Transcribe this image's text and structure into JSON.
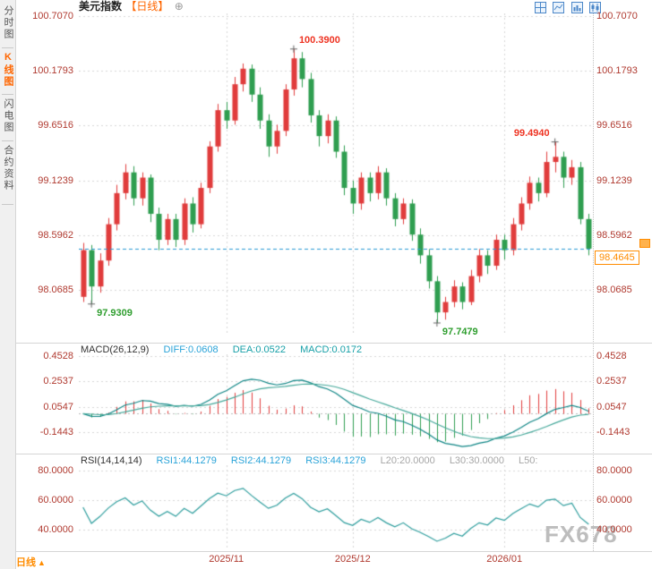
{
  "header": {
    "symbol": "美元指数",
    "period": "【日线】",
    "expand_glyph": "⊕"
  },
  "toolbar": {
    "icons": [
      "grid-layout-icon",
      "line-chart-icon",
      "bar-chart-icon",
      "candlestick-chart-icon"
    ]
  },
  "sidebar": {
    "tabs": [
      {
        "label": "分时图",
        "active": false
      },
      {
        "label": "K线图",
        "active": true
      },
      {
        "label": "闪电图",
        "active": false
      },
      {
        "label": "合约资料",
        "active": false
      }
    ]
  },
  "price_axis": {
    "ticks": [
      "100.7070",
      "100.1793",
      "99.6516",
      "99.1239",
      "98.5962",
      "98.0685"
    ],
    "current_label": "98.4645"
  },
  "macd_panel": {
    "title": "MACD(26,12,9)",
    "diff": "DIFF:0.0608",
    "dea": "DEA:0.0522",
    "macd": "MACD:0.0172",
    "ticks": [
      "0.4528",
      "0.2537",
      "0.0547",
      "-0.1443"
    ]
  },
  "rsi_panel": {
    "title": "RSI(14,14,14)",
    "rsi1": "RSI1:44.1279",
    "rsi2": "RSI2:44.1279",
    "rsi3": "RSI3:44.1279",
    "l20": "L20:20.0000",
    "l30": "L30:30.0000",
    "l50": "L50:",
    "ticks": [
      "80.0000",
      "60.0000",
      "40.0000"
    ]
  },
  "footer": {
    "period": "日线",
    "arrow": "▲"
  },
  "watermark": "FX678",
  "colors": {
    "up": "#e03c3c",
    "down": "#2f9e50",
    "grid": "#d6d6d6",
    "axis_text": "#b03a30",
    "dashed_line": "#2a9ad4",
    "current_price_accent": "#ff8c00",
    "diff_line": "#0e8585",
    "dea_line": "#45a89a",
    "rsi_line": "#2d9d9d",
    "header_blue": "#2aa3d8",
    "header_gray": "#a6a6a6",
    "watermark": "#bdbdbd",
    "sidebar_active": "#ff6600"
  },
  "chart_data": {
    "type": "candlestick",
    "symbol": "美元指数",
    "period": "日线",
    "price_domain": [
      97.653,
      100.733
    ],
    "macd_domain": [
      -0.305,
      0.465
    ],
    "rsi_domain": [
      26.5,
      83.5
    ],
    "current_price": 98.4645,
    "ohlc": [
      [
        98.0,
        98.52,
        97.95,
        98.45
      ],
      [
        98.45,
        98.5,
        97.9309,
        98.1
      ],
      [
        98.1,
        98.42,
        98.04,
        98.35
      ],
      [
        98.35,
        98.76,
        98.3,
        98.7
      ],
      [
        98.7,
        99.08,
        98.64,
        99.0
      ],
      [
        99.0,
        99.28,
        98.94,
        99.2
      ],
      [
        99.2,
        99.26,
        98.88,
        98.95
      ],
      [
        98.95,
        99.2,
        98.88,
        99.15
      ],
      [
        99.15,
        99.18,
        98.72,
        98.8
      ],
      [
        98.8,
        98.86,
        98.45,
        98.55
      ],
      [
        98.55,
        98.8,
        98.5,
        98.75
      ],
      [
        98.75,
        98.8,
        98.48,
        98.55
      ],
      [
        98.55,
        98.95,
        98.5,
        98.9
      ],
      [
        98.9,
        98.96,
        98.62,
        98.7
      ],
      [
        98.7,
        99.1,
        98.66,
        99.05
      ],
      [
        99.05,
        99.5,
        99.0,
        99.45
      ],
      [
        99.45,
        99.86,
        99.4,
        99.8
      ],
      [
        99.8,
        99.88,
        99.62,
        99.7
      ],
      [
        99.7,
        100.12,
        99.66,
        100.05
      ],
      [
        100.05,
        100.25,
        99.98,
        100.2
      ],
      [
        100.2,
        100.24,
        99.88,
        99.95
      ],
      [
        99.95,
        100.02,
        99.62,
        99.7
      ],
      [
        99.7,
        99.76,
        99.35,
        99.45
      ],
      [
        99.45,
        99.66,
        99.38,
        99.6
      ],
      [
        99.6,
        100.05,
        99.55,
        100.0
      ],
      [
        100.0,
        100.39,
        99.94,
        100.3
      ],
      [
        100.3,
        100.36,
        100.02,
        100.1
      ],
      [
        100.1,
        100.16,
        99.68,
        99.75
      ],
      [
        99.75,
        99.8,
        99.45,
        99.55
      ],
      [
        99.55,
        99.76,
        99.48,
        99.7
      ],
      [
        99.7,
        99.74,
        99.34,
        99.4
      ],
      [
        99.4,
        99.46,
        98.98,
        99.05
      ],
      [
        99.05,
        99.12,
        98.8,
        98.9
      ],
      [
        98.9,
        99.2,
        98.84,
        99.15
      ],
      [
        99.15,
        99.2,
        98.92,
        99.0
      ],
      [
        99.0,
        99.26,
        98.94,
        99.2
      ],
      [
        99.2,
        99.24,
        98.88,
        98.95
      ],
      [
        98.95,
        99.0,
        98.68,
        98.75
      ],
      [
        98.75,
        98.95,
        98.7,
        98.9
      ],
      [
        98.9,
        98.94,
        98.54,
        98.6
      ],
      [
        98.6,
        98.66,
        98.32,
        98.4
      ],
      [
        98.4,
        98.46,
        98.08,
        98.15
      ],
      [
        98.15,
        98.2,
        97.7479,
        97.85
      ],
      [
        97.85,
        98.0,
        97.78,
        97.95
      ],
      [
        97.95,
        98.16,
        97.9,
        98.1
      ],
      [
        98.1,
        98.14,
        97.88,
        97.95
      ],
      [
        97.95,
        98.26,
        97.92,
        98.2
      ],
      [
        98.2,
        98.46,
        98.14,
        98.4
      ],
      [
        98.4,
        98.45,
        98.22,
        98.3
      ],
      [
        98.3,
        98.6,
        98.26,
        98.55
      ],
      [
        98.55,
        98.6,
        98.36,
        98.45
      ],
      [
        98.45,
        98.76,
        98.4,
        98.7
      ],
      [
        98.7,
        98.96,
        98.64,
        98.9
      ],
      [
        98.9,
        99.16,
        98.84,
        99.1
      ],
      [
        99.1,
        99.15,
        98.92,
        99.0
      ],
      [
        99.0,
        99.4,
        98.96,
        99.3
      ],
      [
        99.3,
        99.494,
        99.2,
        99.35
      ],
      [
        99.35,
        99.4,
        99.05,
        99.15
      ],
      [
        99.15,
        99.32,
        99.08,
        99.25
      ],
      [
        99.25,
        99.3,
        98.7,
        98.75
      ],
      [
        98.75,
        98.8,
        98.4,
        98.4645
      ]
    ],
    "annotations": [
      {
        "index": 25,
        "price": 100.39,
        "text": "100.3900",
        "color": "#ee3322",
        "side": "above",
        "dir": "right"
      },
      {
        "index": 56,
        "price": 99.494,
        "text": "99.4940",
        "color": "#ee3322",
        "side": "above",
        "dir": "left"
      },
      {
        "index": 1,
        "price": 97.9309,
        "text": "97.9309",
        "color": "#2f9e2f",
        "side": "below",
        "dir": "right"
      },
      {
        "index": 42,
        "price": 97.7479,
        "text": "97.7479",
        "color": "#2f9e2f",
        "side": "below",
        "dir": "right"
      }
    ],
    "month_ticks": [
      {
        "index": 17,
        "label": "2025/11"
      },
      {
        "index": 32,
        "label": "2025/12"
      },
      {
        "index": 50,
        "label": "2026/01"
      }
    ],
    "macd_params": [
      26,
      12,
      9
    ],
    "rsi_period": 14
  }
}
